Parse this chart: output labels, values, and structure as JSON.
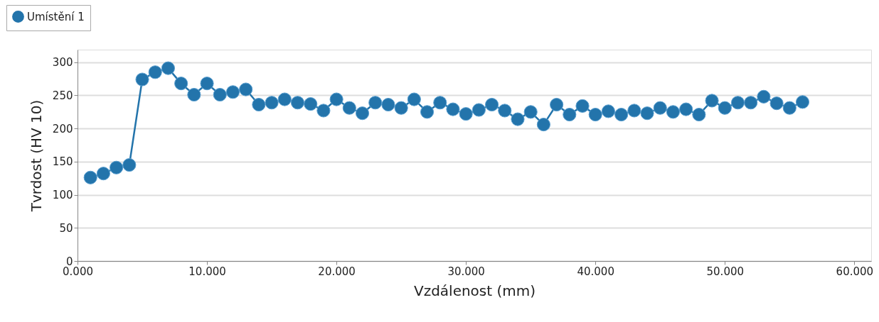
{
  "chart_data": {
    "type": "line",
    "xlabel": "Vzdálenost (mm)",
    "ylabel": "Tvrdost (HV 10)",
    "x": [
      1,
      2,
      3,
      4,
      5,
      6,
      7,
      8,
      9,
      10,
      11,
      12,
      13,
      14,
      15,
      16,
      17,
      18,
      19,
      20,
      21,
      22,
      23,
      24,
      25,
      26,
      27,
      28,
      29,
      30,
      31,
      32,
      33,
      34,
      35,
      36,
      37,
      38,
      39,
      40,
      41,
      42,
      43,
      44,
      45,
      46,
      47,
      48,
      49,
      50,
      51,
      52,
      53,
      54,
      55,
      56
    ],
    "series": [
      {
        "name": "Umístění 1",
        "color": "#2374ab",
        "values": [
          126,
          132,
          141,
          145,
          274,
          285,
          291,
          268,
          251,
          268,
          251,
          255,
          259,
          236,
          239,
          244,
          239,
          237,
          227,
          244,
          231,
          223,
          239,
          236,
          231,
          244,
          225,
          239,
          229,
          222,
          228,
          236,
          227,
          214,
          225,
          206,
          236,
          221,
          234,
          221,
          226,
          221,
          227,
          223,
          231,
          225,
          229,
          221,
          242,
          231,
          239,
          239,
          248,
          238,
          231,
          240
        ]
      }
    ],
    "xlim": [
      0,
      61.3
    ],
    "xticks": [
      {
        "value": 0,
        "label": "0.000"
      },
      {
        "value": 10,
        "label": "10.000"
      },
      {
        "value": 20,
        "label": "20.000"
      },
      {
        "value": 30,
        "label": "30.000"
      },
      {
        "value": 40,
        "label": "40.000"
      },
      {
        "value": 50,
        "label": "50.000"
      },
      {
        "value": 60,
        "label": "60.000"
      }
    ],
    "ylim": [
      0,
      319
    ],
    "yticks": [
      0,
      50,
      100,
      150,
      200,
      250,
      300
    ],
    "grid": "y",
    "legend": "top left",
    "marker": "circle",
    "line_style": "solid"
  }
}
